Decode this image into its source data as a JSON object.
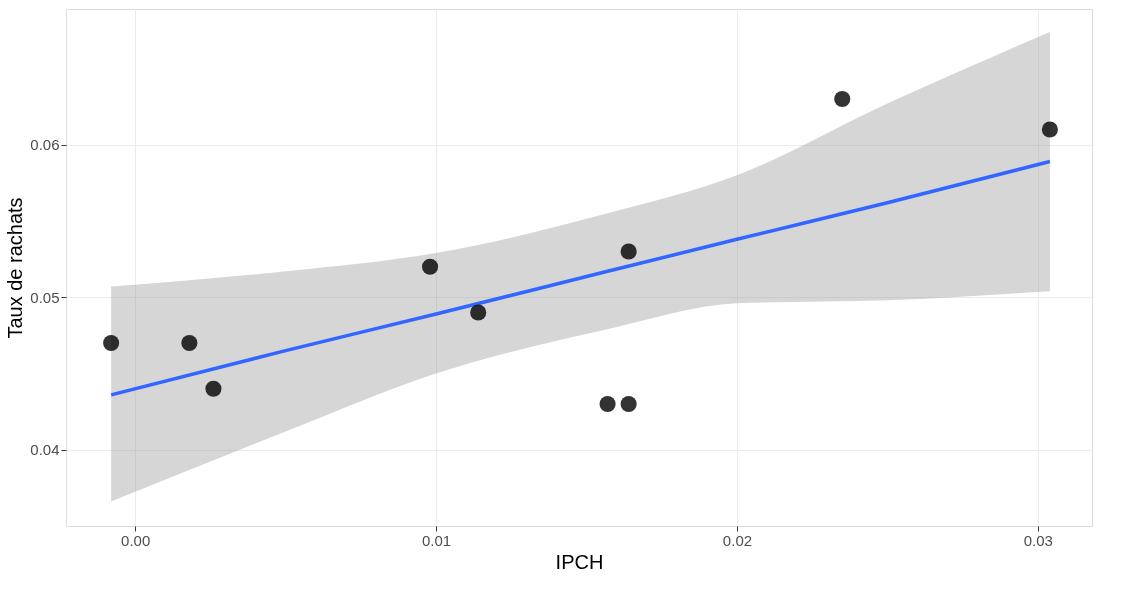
{
  "chart_data": {
    "type": "scatter",
    "xlabel": "IPCH",
    "ylabel": "Taux de rachats",
    "xlim": [
      -0.0023,
      0.0318
    ],
    "ylim": [
      0.035,
      0.0689
    ],
    "xticks": [
      {
        "value": 0,
        "label": "0.00"
      },
      {
        "value": 0.01,
        "label": "0.01"
      },
      {
        "value": 0.02,
        "label": "0.02"
      },
      {
        "value": 0.03,
        "label": "0.03"
      }
    ],
    "yticks": [
      0.04,
      0.05,
      0.06
    ],
    "grid": true,
    "series": [
      {
        "marker": "circle",
        "color": "#000000",
        "x": [
          -0.0008,
          0.0018,
          0.0026,
          0.0098,
          0.0114,
          0.0157,
          0.0164,
          0.0164,
          0.0235,
          0.0304
        ],
        "values": [
          0.047,
          0.047,
          0.044,
          0.052,
          0.049,
          0.043,
          0.043,
          0.053,
          0.063,
          0.061
        ]
      },
      {
        "type": "line",
        "color": "#3366ff",
        "x": [
          -0.0008,
          0.005,
          0.01,
          0.0157,
          0.02,
          0.025,
          0.0304
        ],
        "values": [
          0.0436,
          0.0465,
          0.0489,
          0.0517,
          0.0538,
          0.0562,
          0.0589
        ],
        "lower": [
          0.0366,
          0.0412,
          0.045,
          0.0479,
          0.0496,
          0.0498,
          0.0504
        ],
        "upper": [
          0.0507,
          0.0517,
          0.0529,
          0.0555,
          0.058,
          0.0627,
          0.0674
        ]
      }
    ]
  }
}
